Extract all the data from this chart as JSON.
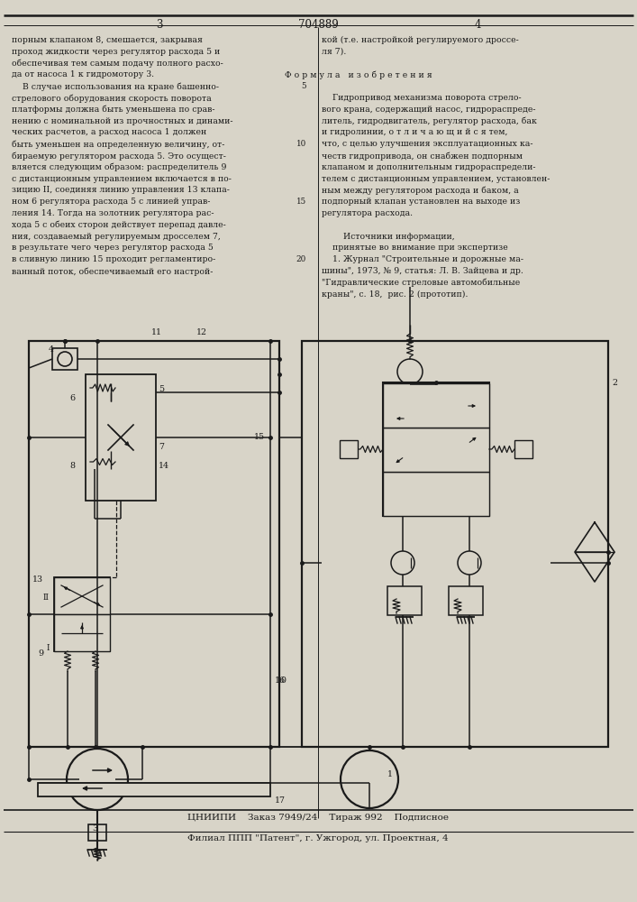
{
  "bg_color": "#d8d4c8",
  "line_color": "#1a1a1a",
  "text_color": "#1a1a1a",
  "patent_number": "704889",
  "page_left": "3",
  "page_right": "4",
  "footer1": "ЦНИИПИ    Заказ 7949/24    Тираж 992    Подписное",
  "footer2": "Филиал ППП \"Патент\", г. Ужгород, ул. Проектная, 4",
  "left_column": [
    "порным клапаном 8, смешается, закрывая",
    "проход жидкости через регулятор расхода 5 и",
    "обеспечивая тем самым подачу полного расхо-",
    "да от насоса 1 к гидромотору 3.",
    "    В случае использования на кране башенно-",
    "стрелового оборудования скорость поворота",
    "платформы должна быть уменьшена по срав-",
    "нению с номинальной из прочностных и динами-",
    "ческих расчетов, а расход насоса 1 должен",
    "быть уменьшен на определенную величину, от-",
    "бираемую регулятором расхода 5. Это осущест-",
    "вляется следующим образом: распределитель 9",
    "с дистанционным управлением включается в по-",
    "зицию II, соединяя линию управления 13 клапа-",
    "ном 6 регулятора расхода 5 с линией управ-",
    "ления 14. Тогда на золотник регулятора рас-",
    "хода 5 с обеих сторон действует перепад давле-",
    "ния, создаваемый регулируемым дросселем 7,",
    "в результате чего через регулятор расхода 5",
    "в сливную линию 15 проходит регламентиро-",
    "ванный поток, обеспечиваемый его настрой-"
  ],
  "right_column": [
    "кой (т.е. настройкой регулируемого дроссе-",
    "ля 7).",
    "",
    "Ф о р м у л а   и з о б р е т е н и я",
    "",
    "    Гидропривод механизма поворота стрело-",
    "вого крана, содержащий насос, гидрораспреде-",
    "литель, гидродвигатель, регулятор расхода, бак",
    "и гидролинии, о т л и ч а ю щ и й с я тем,",
    "что, с целью улучшения эксплуатационных ка-",
    "честв гидропривода, он снабжен подпорным",
    "клапаном и дополнительным гидрораспредели-",
    "телем с дистанционным управлением, установлен-",
    "ным между регулятором расхода и баком, а",
    "подпорный клапан установлен на выходе из",
    "регулятора расхода.",
    "",
    "        Источники информации,",
    "    принятые во внимание при экспертизе",
    "    1. Журнал \"Строительные и дорожные ма-",
    "шины\", 1973, № 9, статья: Л. В. Зайцева и др.",
    "\"Гидравлические стреловые автомобильные",
    "краны\", с. 18,  рис. 2 (прототип)."
  ]
}
